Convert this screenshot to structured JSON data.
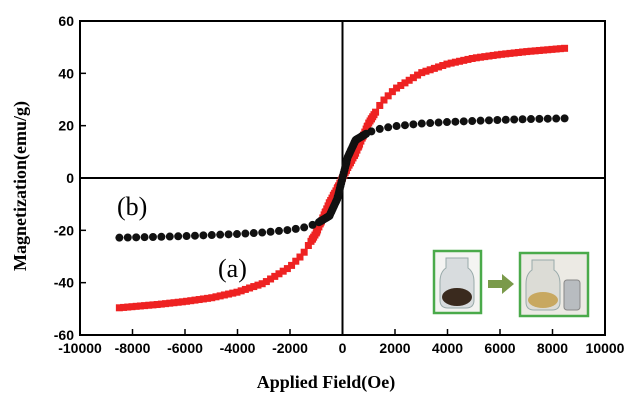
{
  "chart_data": {
    "type": "scatter",
    "xlabel": "Applied Field(Oe)",
    "ylabel": "Magnetization(emu/g)",
    "xlim": [
      -10000,
      10000
    ],
    "ylim": [
      -60,
      60
    ],
    "xticks": [
      "-10000",
      "-8000",
      "-6000",
      "-4000",
      "-2000",
      "0",
      "2000",
      "4000",
      "6000",
      "8000",
      "10000"
    ],
    "yticks": [
      "-60",
      "-40",
      "-20",
      "0",
      "20",
      "40",
      "60"
    ],
    "grid": false,
    "zero_lines": true,
    "series": [
      {
        "label": "(a)",
        "marker": "square",
        "color": "#ee2222",
        "saturation": 49.6,
        "x": [
          -8500,
          -7000,
          -6000,
          -5000,
          -4000,
          -3000,
          -2000,
          -1500,
          -1000,
          -500,
          -200,
          0,
          200,
          500,
          1000,
          1500,
          2000,
          3000,
          4000,
          5000,
          6000,
          7000,
          8500
        ],
        "y": [
          -49.6,
          -48.3,
          -47.2,
          -45.8,
          -43.6,
          -40.2,
          -34.0,
          -29.0,
          -21.0,
          -9.5,
          -4.0,
          0,
          4.0,
          9.5,
          21.0,
          29.0,
          34.0,
          40.2,
          43.6,
          45.8,
          47.2,
          48.3,
          49.6
        ]
      },
      {
        "label": "(b)",
        "marker": "circle",
        "color": "#111111",
        "saturation": 22.8,
        "x": [
          -8500,
          -7000,
          -6000,
          -5000,
          -4000,
          -3000,
          -2000,
          -1500,
          -1000,
          -500,
          -200,
          0,
          200,
          500,
          1000,
          1500,
          2000,
          3000,
          4000,
          5000,
          6000,
          7000,
          8500
        ],
        "y": [
          -22.8,
          -22.5,
          -22.2,
          -21.8,
          -21.4,
          -20.8,
          -19.8,
          -19.0,
          -17.5,
          -14.5,
          -8.0,
          0,
          8.0,
          14.5,
          17.5,
          19.0,
          19.8,
          20.8,
          21.4,
          21.8,
          22.2,
          22.5,
          22.8
        ]
      }
    ],
    "annotations": [
      "(b)",
      "(a)"
    ]
  },
  "inset": {
    "arrow_color": "#7a9a4a",
    "frame_color": "#4aaa4a"
  }
}
